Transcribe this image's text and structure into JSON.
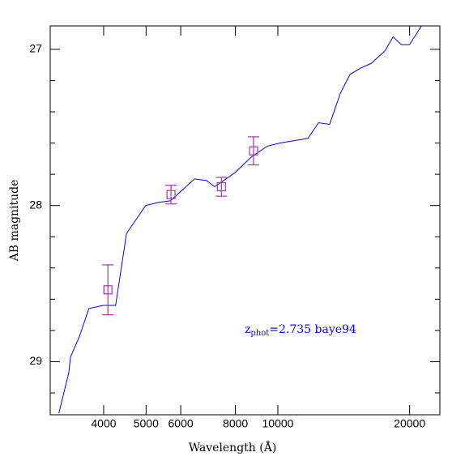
{
  "chart_data": {
    "type": "line",
    "x_label": "Wavelength (Å)",
    "y_label": "AB magnitude",
    "x_log": true,
    "y_inverted": true,
    "xlim": [
      3020,
      23450
    ],
    "ylim": [
      29.34,
      26.85
    ],
    "xticks": [
      4000,
      5000,
      6000,
      8000,
      10000,
      20000
    ],
    "yticks": [
      27,
      28,
      29
    ],
    "yminorticks": [
      26.8,
      27.2,
      27.4,
      27.6,
      27.8,
      28.2,
      28.4,
      28.6,
      28.8,
      29.2
    ],
    "model": {
      "color": "#0000ff",
      "x": [
        3160,
        3330,
        3360,
        3520,
        3700,
        3990,
        4260,
        4510,
        4990,
        5330,
        5680,
        6450,
        6870,
        7170,
        7980,
        8690,
        9460,
        10090,
        11720,
        12380,
        13130,
        13900,
        14620,
        15450,
        16340,
        17560,
        18330,
        19140,
        19980,
        21290
      ],
      "values": [
        29.33,
        29.07,
        28.97,
        28.84,
        28.66,
        28.64,
        28.64,
        28.18,
        28.0,
        27.98,
        27.97,
        27.83,
        27.84,
        27.88,
        27.79,
        27.69,
        27.62,
        27.6,
        27.57,
        27.47,
        27.48,
        27.28,
        27.16,
        27.12,
        27.09,
        27.01,
        26.92,
        26.97,
        26.97,
        26.85
      ]
    },
    "photometry": {
      "color": "#b030b0",
      "x": [
        4090,
        5700,
        7430,
        8800
      ],
      "values": [
        28.54,
        27.93,
        27.88,
        27.65
      ],
      "errors": [
        0.16,
        0.06,
        0.06,
        0.09
      ]
    },
    "annotation": {
      "main": "z",
      "sub": "phot",
      "rest": "=2.735 baye94",
      "color": "#0000ff",
      "x": 0.0,
      "y": 0.0
    }
  }
}
